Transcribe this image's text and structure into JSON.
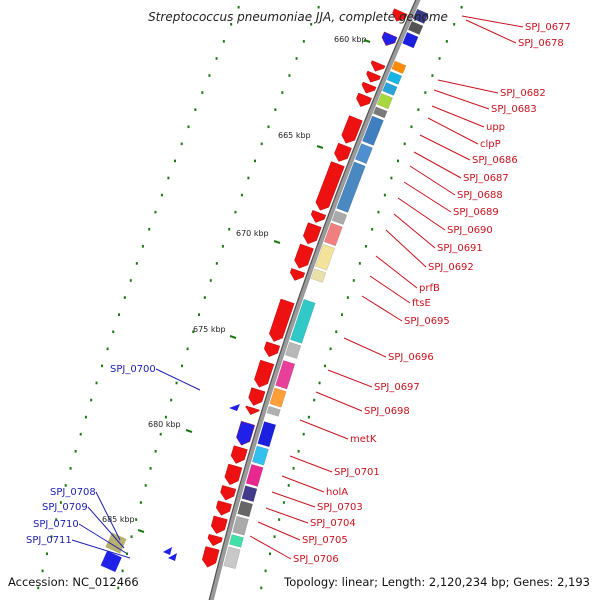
{
  "title": "Streptococcus pneumoniae JJA, complete genome",
  "accession": "Accession: NC_012466",
  "topology": "Topology: linear; Length: 2,120,234 bp; Genes: 2,193",
  "colors": {
    "forward_label": "#c8141e",
    "reverse_label": "#1b1fb0",
    "backbone": "#777777",
    "tick": "#1c7a12",
    "gene_red": "#ee1111"
  },
  "ticks": [
    "660 kbp",
    "665 kbp",
    "670 kbp",
    "675 kbp",
    "680 kbp",
    "685 kbp"
  ],
  "forward_labels": [
    "SPJ_0677",
    "SPJ_0678",
    "SPJ_0682",
    "SPJ_0683",
    "upp",
    "clpP",
    "SPJ_0686",
    "SPJ_0687",
    "SPJ_0688",
    "SPJ_0689",
    "SPJ_0690",
    "SPJ_0691",
    "SPJ_0692",
    "prfB",
    "ftsE",
    "SPJ_0695",
    "SPJ_0696",
    "SPJ_0697",
    "SPJ_0698",
    "metK",
    "SPJ_0701",
    "holA",
    "SPJ_0703",
    "SPJ_0704",
    "SPJ_0705",
    "SPJ_0706"
  ],
  "reverse_labels": [
    "SPJ_0700",
    "SPJ_0708",
    "SPJ_0709",
    "SPJ_0710",
    "SPJ_0711"
  ]
}
